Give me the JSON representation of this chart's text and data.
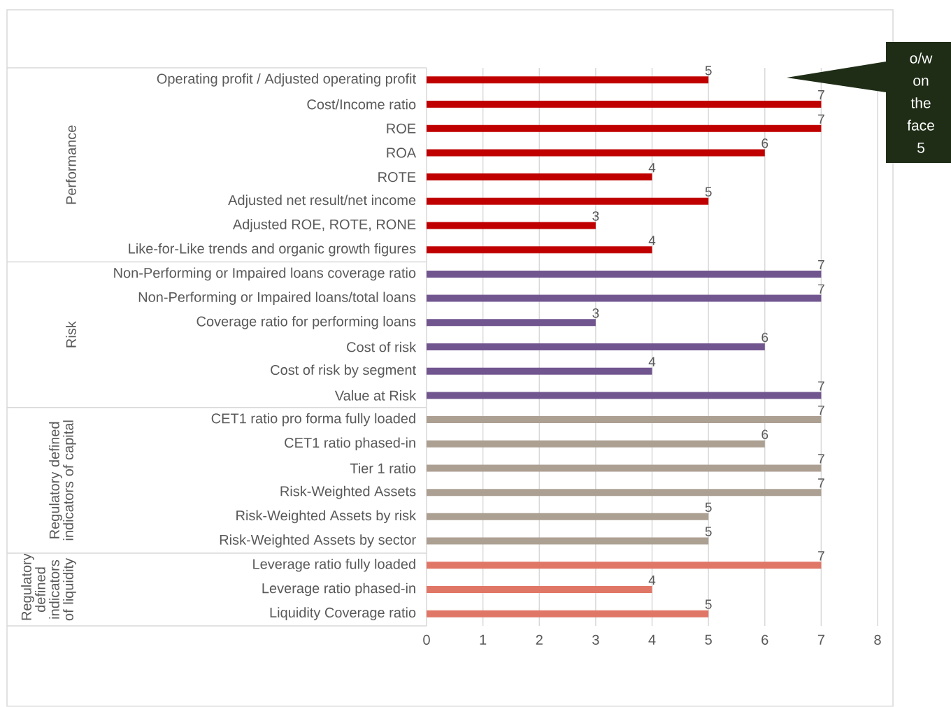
{
  "chart_data": {
    "type": "bar",
    "orientation": "horizontal",
    "categories": [
      "Operating profit / Adjusted operating profit",
      "Cost/Income ratio",
      "ROE",
      "ROA",
      "ROTE",
      "Adjusted net result/net income",
      "Adjusted ROE, ROTE, RONE",
      "Like-for-Like trends and organic growth figures",
      "Non-Performing or Impaired loans coverage ratio",
      "Non-Performing or Impaired loans/total loans",
      "Coverage ratio for performing loans",
      "Cost of risk",
      "Cost of risk by segment",
      "Value at Risk",
      "CET1 ratio pro forma fully loaded",
      "CET1 ratio phased-in",
      "Tier 1 ratio",
      "Risk-Weighted Assets",
      "Risk-Weighted Assets by risk",
      "Risk-Weighted Assets by sector",
      "Leverage ratio fully loaded",
      "Leverage ratio phased-in",
      "Liquidity Coverage ratio"
    ],
    "values": [
      5,
      7,
      7,
      6,
      4,
      5,
      3,
      4,
      7,
      7,
      3,
      6,
      4,
      7,
      7,
      6,
      7,
      7,
      5,
      5,
      7,
      4,
      5
    ],
    "colors": [
      "#c00000",
      "#c00000",
      "#c00000",
      "#c00000",
      "#c00000",
      "#c00000",
      "#c00000",
      "#c00000",
      "#71558f",
      "#71558f",
      "#71558f",
      "#71558f",
      "#71558f",
      "#71558f",
      "#aca093",
      "#aca093",
      "#aca093",
      "#aca093",
      "#aca093",
      "#aca093",
      "#e07666",
      "#e07666",
      "#e07666"
    ],
    "xlim": [
      0,
      8
    ],
    "xticks": [
      0,
      1,
      2,
      3,
      4,
      5,
      6,
      7,
      8
    ],
    "grid": "x",
    "data_labels": true,
    "annotations": [
      "Performance",
      "Risk",
      "Regulatory defined indicators of capital",
      "Regulatory defined indicators of liquidity",
      "o/w on the face 5"
    ]
  }
}
